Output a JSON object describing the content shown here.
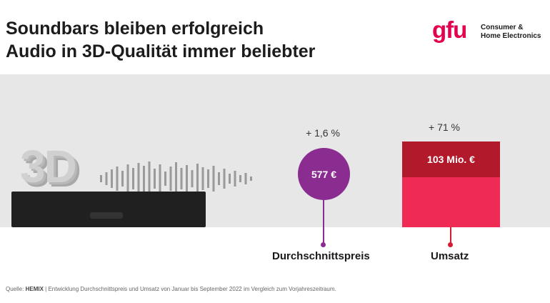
{
  "title": {
    "line1": "Soundbars bleiben erfolgreich",
    "line2": "Audio in 3D-Qualität immer beliebter"
  },
  "logo": {
    "brand": "gfu",
    "line1": "Consumer &",
    "line2": "Home Electronics"
  },
  "image": {
    "label_3d": "3D"
  },
  "colors": {
    "purple": "#8b2c91",
    "dark_red": "#b21a2b",
    "pink": "#ef2a55",
    "brand": "#e3004f"
  },
  "chart_data": {
    "type": "infographic",
    "items": [
      {
        "category": "Durchschnittspreis",
        "value_label": "577 €",
        "change_label": "+ 1,6 %",
        "value": 577,
        "unit": "€",
        "change_pct": 1.6,
        "shape": "circle"
      },
      {
        "category": "Umsatz",
        "value_label": "103 Mio. €",
        "change_label": "+ 71 %",
        "value": 103,
        "unit": "Mio. €",
        "change_pct": 71,
        "shape": "bar"
      }
    ]
  },
  "source": {
    "prefix": "Quelle:",
    "brand": "HEMIX",
    "text": "| Entwicklung Durchschnittspreis und Umsatz von Januar bis September 2022 im Vergleich zum Vorjahreszeitraum."
  }
}
